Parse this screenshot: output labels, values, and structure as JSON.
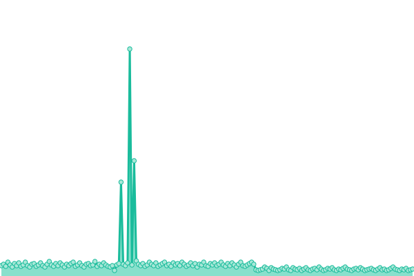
{
  "chart_data": {
    "type": "area",
    "title": "",
    "xlabel": "",
    "ylabel": "",
    "ylim": [
      0,
      40
    ],
    "grid": false,
    "axes_visible": false,
    "markers": true,
    "colors": {
      "line": "#1abc9c",
      "area": "#88e0cc",
      "marker_fill": "#a8e8d8"
    },
    "values": [
      1.5,
      1.7,
      1.4,
      2.0,
      1.6,
      1.3,
      1.8,
      1.5,
      1.9,
      1.4,
      1.6,
      2.0,
      1.5,
      1.3,
      1.7,
      1.8,
      1.4,
      1.6,
      1.9,
      1.5,
      1.3,
      1.7,
      2.1,
      1.6,
      1.4,
      1.8,
      1.5,
      1.9,
      1.6,
      1.3,
      1.7,
      1.5,
      1.8,
      2.0,
      1.4,
      1.6,
      1.9,
      1.5,
      1.3,
      1.7,
      1.8,
      1.5,
      1.6,
      2.1,
      1.4,
      1.7,
      1.5,
      1.9,
      1.6,
      1.4,
      1.3,
      1.5,
      0.8,
      1.6,
      1.8,
      13.6,
      1.7,
      1.5,
      1.9,
      32.9,
      1.6,
      16.7,
      2.2,
      1.7,
      1.5,
      1.8,
      1.4,
      1.6,
      2.0,
      1.7,
      1.5,
      1.9,
      1.4,
      1.6,
      1.8,
      2.0,
      1.5,
      1.7,
      1.4,
      1.9,
      1.6,
      1.8,
      1.5,
      2.0,
      1.7,
      1.4,
      1.6,
      1.9,
      1.5,
      1.8,
      1.3,
      1.7,
      1.6,
      2.0,
      1.5,
      1.4,
      1.8,
      1.6,
      1.9,
      1.5,
      1.7,
      2.0,
      1.6,
      1.4,
      1.8,
      1.5,
      1.9,
      1.6,
      1.3,
      1.7,
      2.0,
      1.5,
      1.4,
      1.6,
      1.8,
      2.0,
      1.7,
      0.9,
      0.8,
      0.9,
      1.0,
      1.3,
      1.1,
      0.8,
      1.2,
      1.0,
      0.9,
      0.8,
      0.9,
      1.1,
      1.0,
      1.3,
      0.9,
      0.8,
      1.2,
      1.0,
      0.9,
      1.1,
      0.8,
      1.0,
      1.2,
      0.9,
      0.8,
      1.0,
      1.1,
      0.9,
      1.3,
      1.0,
      0.8,
      0.9,
      1.1,
      1.0,
      1.2,
      0.9,
      0.8,
      1.0,
      0.9,
      1.1,
      1.3,
      1.0,
      0.9,
      0.8,
      1.0,
      1.1,
      0.9,
      1.2,
      1.0,
      0.8,
      0.9,
      1.0,
      1.1,
      0.9,
      0.8,
      1.0,
      1.2,
      0.9,
      1.0,
      0.8,
      0.9,
      1.1,
      1.3,
      1.0,
      0.9,
      0.8,
      1.0,
      0.9,
      1.1,
      0.8,
      0.9,
      1.0
    ]
  }
}
